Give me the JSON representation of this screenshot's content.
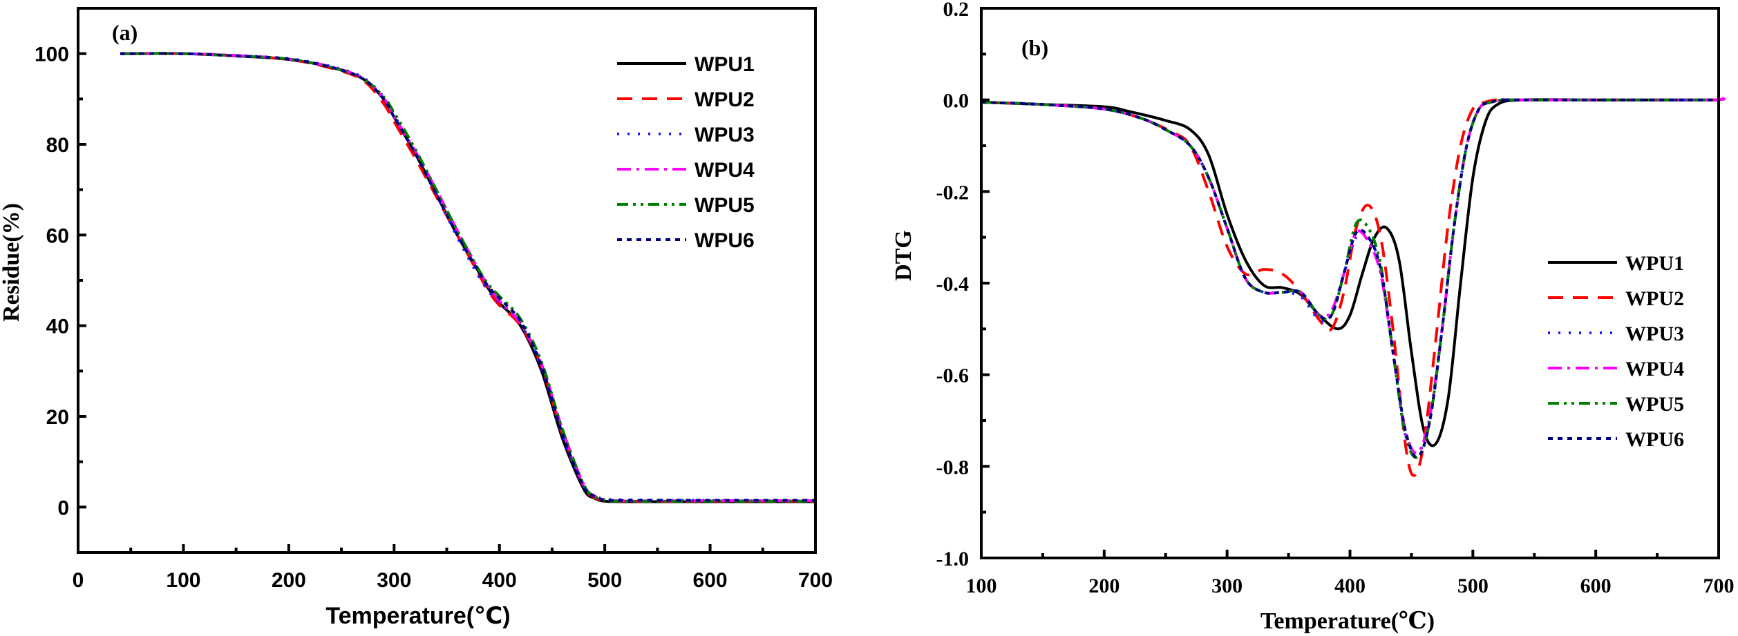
{
  "styles": [
    {
      "name": "WPU1",
      "color": "#000000",
      "dash": ""
    },
    {
      "name": "WPU2",
      "color": "#ff0000",
      "dash": "22,14"
    },
    {
      "name": "WPU3",
      "color": "#1a1aff",
      "dash": "3,12"
    },
    {
      "name": "WPU4",
      "color": "#ff00ff",
      "dash": "20,8,4,8"
    },
    {
      "name": "WPU5",
      "color": "#008000",
      "dash": "16,7,4,7,4,7"
    },
    {
      "name": "WPU6",
      "color": "#000080",
      "dash": "7,7"
    }
  ],
  "chart_data": [
    {
      "type": "line",
      "panel_label": "(a)",
      "xlabel": "Temperature(℃)",
      "ylabel": "Residue(%)",
      "xlim": [
        0,
        700
      ],
      "ylim": [
        -10,
        110
      ],
      "xticks": [
        0,
        100,
        200,
        300,
        400,
        500,
        600,
        700
      ],
      "yticks": [
        0,
        20,
        40,
        60,
        80,
        100
      ],
      "legend_position": "top-right",
      "series": [
        {
          "name": "WPU1",
          "x": [
            40,
            100,
            150,
            200,
            240,
            270,
            290,
            300,
            320,
            340,
            360,
            380,
            390,
            400,
            420,
            440,
            460,
            480,
            490,
            500,
            520,
            600,
            700
          ],
          "y": [
            100,
            100,
            99.5,
            98.7,
            97,
            94.5,
            90,
            86,
            78,
            69,
            60,
            52,
            48,
            45,
            40,
            30,
            15,
            4,
            2,
            1.3,
            1.2,
            1.2,
            1.2
          ]
        },
        {
          "name": "WPU2",
          "x": [
            40,
            100,
            150,
            200,
            240,
            270,
            290,
            300,
            320,
            340,
            360,
            380,
            390,
            400,
            420,
            440,
            460,
            480,
            490,
            500,
            520,
            600,
            700
          ],
          "y": [
            100,
            100,
            99.5,
            98.7,
            96.8,
            94.2,
            89,
            85,
            77,
            68.5,
            60,
            51.5,
            47.5,
            44.5,
            40,
            31,
            16,
            4.5,
            2.2,
            1.4,
            1.3,
            1.3,
            1.3
          ]
        },
        {
          "name": "WPU3",
          "x": [
            40,
            100,
            150,
            200,
            240,
            270,
            290,
            300,
            320,
            340,
            360,
            380,
            390,
            400,
            420,
            440,
            460,
            480,
            490,
            500,
            520,
            600,
            700
          ],
          "y": [
            100,
            100,
            99.6,
            98.9,
            97.2,
            94.8,
            90.5,
            86.5,
            78,
            69,
            59.5,
            51,
            47.5,
            45,
            40.5,
            30.5,
            15.5,
            4.5,
            2.5,
            1.8,
            1.6,
            1.5,
            1.5
          ]
        },
        {
          "name": "WPU4",
          "x": [
            40,
            100,
            150,
            200,
            240,
            270,
            290,
            300,
            320,
            340,
            360,
            380,
            390,
            400,
            420,
            440,
            460,
            480,
            490,
            500,
            520,
            600,
            700
          ],
          "y": [
            100,
            100,
            99.6,
            98.8,
            97.1,
            94.6,
            90.2,
            86.2,
            78.5,
            70,
            61,
            52.5,
            48.5,
            45.5,
            40.5,
            31.5,
            17,
            5,
            2.5,
            1.6,
            1.4,
            1.4,
            1.4
          ]
        },
        {
          "name": "WPU5",
          "x": [
            40,
            100,
            150,
            200,
            240,
            270,
            290,
            300,
            320,
            340,
            360,
            380,
            390,
            400,
            420,
            440,
            460,
            480,
            490,
            500,
            520,
            600,
            700
          ],
          "y": [
            100,
            100,
            99.5,
            98.8,
            97,
            94.5,
            90.5,
            87,
            79,
            70,
            61,
            52.5,
            49,
            46.5,
            41.5,
            32,
            17,
            5,
            2.4,
            1.5,
            1.3,
            1.3,
            1.3
          ]
        },
        {
          "name": "WPU6",
          "x": [
            40,
            100,
            150,
            200,
            240,
            270,
            290,
            300,
            320,
            340,
            360,
            380,
            390,
            400,
            420,
            440,
            460,
            480,
            490,
            500,
            520,
            600,
            700
          ],
          "y": [
            100,
            100,
            99.5,
            98.8,
            97,
            94.5,
            90,
            86,
            78,
            69,
            60,
            52,
            48.5,
            46,
            41,
            31,
            16,
            4.5,
            2.4,
            1.6,
            1.5,
            1.5,
            1.5
          ]
        }
      ]
    },
    {
      "type": "line",
      "panel_label": "(b)",
      "xlabel": "Temperature(℃)",
      "ylabel": "DTG",
      "xlim": [
        100,
        700
      ],
      "ylim": [
        -1.0,
        0.2
      ],
      "xticks": [
        100,
        200,
        300,
        400,
        500,
        600,
        700
      ],
      "yticks": [
        -1.0,
        -0.8,
        -0.6,
        -0.4,
        -0.2,
        0.0,
        0.2
      ],
      "ytick_labels": [
        "-1.0",
        "-0.8",
        "-0.6",
        "-0.4",
        "-0.2",
        "0.0",
        "0.2"
      ],
      "legend_position": "center-right",
      "series": [
        {
          "name": "WPU1",
          "x": [
            100,
            150,
            200,
            220,
            250,
            270,
            285,
            300,
            315,
            330,
            345,
            360,
            375,
            390,
            400,
            410,
            420,
            430,
            440,
            450,
            460,
            470,
            480,
            490,
            500,
            510,
            520,
            540,
            600,
            700
          ],
          "y": [
            -0.005,
            -0.01,
            -0.015,
            -0.025,
            -0.045,
            -0.065,
            -0.12,
            -0.25,
            -0.35,
            -0.405,
            -0.41,
            -0.425,
            -0.47,
            -0.5,
            -0.47,
            -0.38,
            -0.3,
            -0.28,
            -0.35,
            -0.55,
            -0.72,
            -0.75,
            -0.65,
            -0.4,
            -0.17,
            -0.05,
            -0.01,
            0,
            0,
            0
          ]
        },
        {
          "name": "WPU2",
          "x": [
            100,
            150,
            200,
            230,
            255,
            270,
            285,
            300,
            315,
            330,
            345,
            360,
            375,
            385,
            395,
            405,
            415,
            425,
            435,
            445,
            452,
            460,
            470,
            480,
            490,
            500,
            510,
            520,
            540,
            700
          ],
          "y": [
            -0.005,
            -0.01,
            -0.02,
            -0.04,
            -0.07,
            -0.1,
            -0.2,
            -0.32,
            -0.38,
            -0.37,
            -0.38,
            -0.42,
            -0.48,
            -0.5,
            -0.42,
            -0.28,
            -0.23,
            -0.3,
            -0.5,
            -0.75,
            -0.82,
            -0.75,
            -0.52,
            -0.27,
            -0.1,
            -0.02,
            -0.005,
            0,
            0,
            0
          ]
        },
        {
          "name": "WPU3",
          "x": [
            100,
            150,
            200,
            230,
            250,
            270,
            285,
            300,
            315,
            330,
            345,
            360,
            375,
            385,
            395,
            405,
            415,
            425,
            435,
            445,
            455,
            465,
            475,
            485,
            495,
            505,
            515,
            525,
            540,
            700
          ],
          "y": [
            -0.005,
            -0.01,
            -0.02,
            -0.04,
            -0.065,
            -0.1,
            -0.17,
            -0.28,
            -0.39,
            -0.42,
            -0.42,
            -0.43,
            -0.48,
            -0.47,
            -0.38,
            -0.3,
            -0.3,
            -0.37,
            -0.55,
            -0.73,
            -0.77,
            -0.7,
            -0.5,
            -0.27,
            -0.1,
            -0.02,
            -0.005,
            0,
            0,
            0
          ]
        },
        {
          "name": "WPU4",
          "x": [
            100,
            150,
            200,
            230,
            250,
            270,
            285,
            300,
            315,
            330,
            345,
            360,
            375,
            385,
            395,
            405,
            415,
            425,
            435,
            445,
            455,
            465,
            475,
            485,
            495,
            505,
            515,
            525,
            540,
            690,
            700
          ],
          "y": [
            -0.005,
            -0.01,
            -0.02,
            -0.04,
            -0.065,
            -0.1,
            -0.17,
            -0.28,
            -0.39,
            -0.42,
            -0.42,
            -0.42,
            -0.47,
            -0.46,
            -0.38,
            -0.29,
            -0.31,
            -0.38,
            -0.55,
            -0.72,
            -0.77,
            -0.69,
            -0.5,
            -0.27,
            -0.1,
            -0.02,
            -0.005,
            0,
            0,
            0,
            0.005
          ]
        },
        {
          "name": "WPU5",
          "x": [
            100,
            150,
            200,
            230,
            250,
            270,
            285,
            300,
            315,
            330,
            345,
            360,
            375,
            385,
            395,
            405,
            415,
            425,
            435,
            445,
            455,
            465,
            475,
            485,
            495,
            505,
            515,
            525,
            540,
            700
          ],
          "y": [
            -0.005,
            -0.01,
            -0.02,
            -0.04,
            -0.065,
            -0.1,
            -0.17,
            -0.28,
            -0.39,
            -0.42,
            -0.42,
            -0.42,
            -0.47,
            -0.47,
            -0.38,
            -0.27,
            -0.28,
            -0.36,
            -0.55,
            -0.73,
            -0.78,
            -0.7,
            -0.5,
            -0.27,
            -0.1,
            -0.02,
            -0.005,
            0,
            0,
            0
          ]
        },
        {
          "name": "WPU6",
          "x": [
            100,
            150,
            200,
            230,
            250,
            270,
            285,
            300,
            315,
            330,
            345,
            360,
            375,
            385,
            395,
            405,
            415,
            425,
            435,
            445,
            455,
            465,
            475,
            485,
            495,
            505,
            515,
            525,
            540,
            700
          ],
          "y": [
            -0.005,
            -0.01,
            -0.02,
            -0.04,
            -0.065,
            -0.1,
            -0.17,
            -0.28,
            -0.39,
            -0.42,
            -0.42,
            -0.42,
            -0.47,
            -0.47,
            -0.38,
            -0.29,
            -0.3,
            -0.37,
            -0.55,
            -0.72,
            -0.78,
            -0.7,
            -0.5,
            -0.27,
            -0.1,
            -0.02,
            -0.005,
            0,
            0,
            0
          ]
        }
      ]
    }
  ]
}
